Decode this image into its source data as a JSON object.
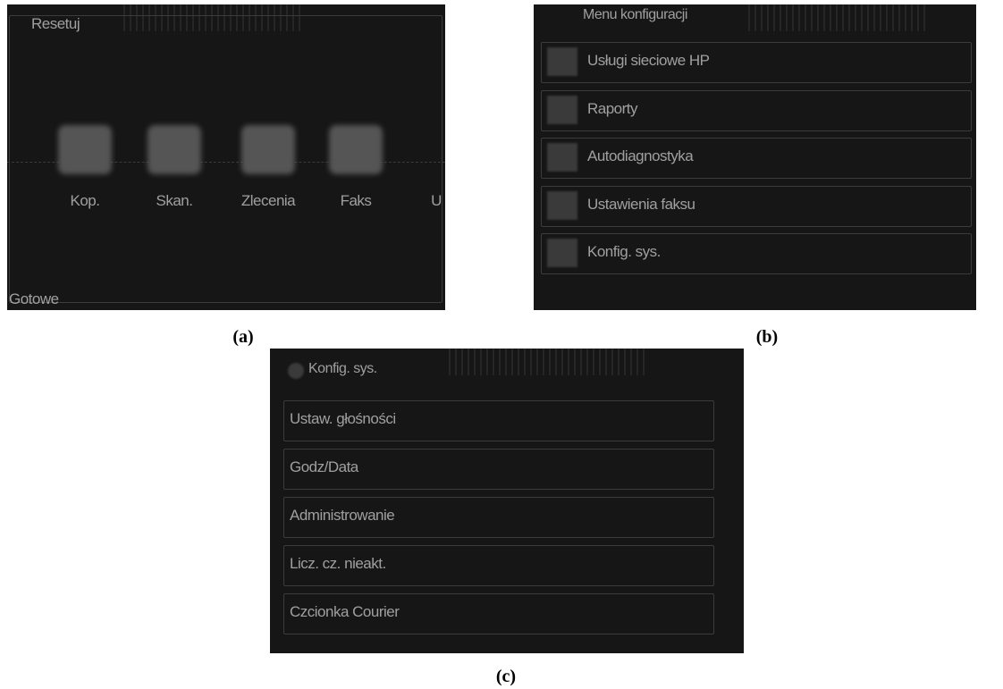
{
  "panels": [
    {
      "caption": "(a)",
      "title": "Resetuj",
      "icons": [
        "Kop.",
        "Skan.",
        "Zlecenia",
        "Faks",
        "U"
      ],
      "status": "Gotowe"
    },
    {
      "caption": "(b)",
      "title": "Menu konfiguracji",
      "items": [
        "Usługi sieciowe HP",
        "Raporty",
        "Autodiagnostyka",
        "Ustawienia faksu",
        "Konfig. sys."
      ]
    },
    {
      "caption": "(c)",
      "title": "Konfig. sys.",
      "items": [
        "Ustaw. głośności",
        "Godz/Data",
        "Administrowanie",
        "Licz. cz. nieakt.",
        "Czcionka Courier"
      ]
    }
  ]
}
